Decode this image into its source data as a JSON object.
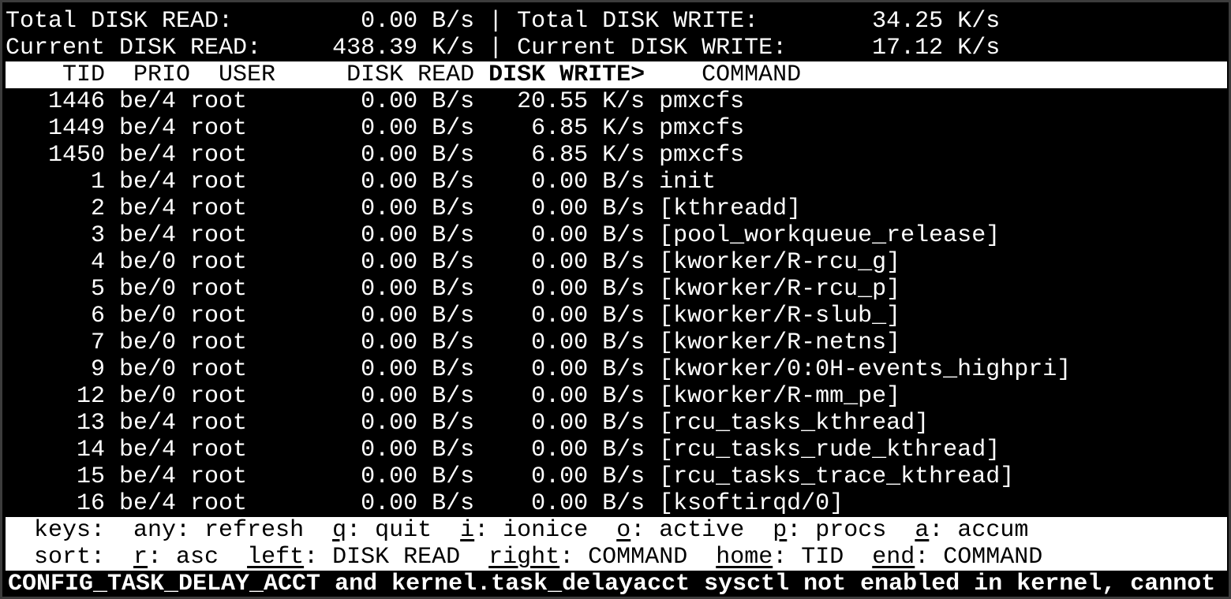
{
  "summary": {
    "total_read_label": "Total DISK READ:",
    "total_read_value": "0.00 B/s",
    "total_write_label": "Total DISK WRITE:",
    "total_write_value": "34.25 K/s",
    "current_read_label": "Current DISK READ:",
    "current_read_value": "438.39 K/s",
    "current_write_label": "Current DISK WRITE:",
    "current_write_value": "17.12 K/s",
    "separator": "|"
  },
  "columns": {
    "tid": "TID",
    "prio": "PRIO",
    "user": "USER",
    "disk_read": "DISK READ",
    "disk_write": "DISK WRITE>",
    "command": "COMMAND"
  },
  "rows": [
    {
      "tid": "1446",
      "prio": "be/4",
      "user": "root",
      "read": "0.00 B/s",
      "write": "20.55 K/s",
      "command": "pmxcfs"
    },
    {
      "tid": "1449",
      "prio": "be/4",
      "user": "root",
      "read": "0.00 B/s",
      "write": "6.85 K/s",
      "command": "pmxcfs"
    },
    {
      "tid": "1450",
      "prio": "be/4",
      "user": "root",
      "read": "0.00 B/s",
      "write": "6.85 K/s",
      "command": "pmxcfs"
    },
    {
      "tid": "1",
      "prio": "be/4",
      "user": "root",
      "read": "0.00 B/s",
      "write": "0.00 B/s",
      "command": "init"
    },
    {
      "tid": "2",
      "prio": "be/4",
      "user": "root",
      "read": "0.00 B/s",
      "write": "0.00 B/s",
      "command": "[kthreadd]"
    },
    {
      "tid": "3",
      "prio": "be/4",
      "user": "root",
      "read": "0.00 B/s",
      "write": "0.00 B/s",
      "command": "[pool_workqueue_release]"
    },
    {
      "tid": "4",
      "prio": "be/0",
      "user": "root",
      "read": "0.00 B/s",
      "write": "0.00 B/s",
      "command": "[kworker/R-rcu_g]"
    },
    {
      "tid": "5",
      "prio": "be/0",
      "user": "root",
      "read": "0.00 B/s",
      "write": "0.00 B/s",
      "command": "[kworker/R-rcu_p]"
    },
    {
      "tid": "6",
      "prio": "be/0",
      "user": "root",
      "read": "0.00 B/s",
      "write": "0.00 B/s",
      "command": "[kworker/R-slub_]"
    },
    {
      "tid": "7",
      "prio": "be/0",
      "user": "root",
      "read": "0.00 B/s",
      "write": "0.00 B/s",
      "command": "[kworker/R-netns]"
    },
    {
      "tid": "9",
      "prio": "be/0",
      "user": "root",
      "read": "0.00 B/s",
      "write": "0.00 B/s",
      "command": "[kworker/0:0H-events_highpri]"
    },
    {
      "tid": "12",
      "prio": "be/0",
      "user": "root",
      "read": "0.00 B/s",
      "write": "0.00 B/s",
      "command": "[kworker/R-mm_pe]"
    },
    {
      "tid": "13",
      "prio": "be/4",
      "user": "root",
      "read": "0.00 B/s",
      "write": "0.00 B/s",
      "command": "[rcu_tasks_kthread]"
    },
    {
      "tid": "14",
      "prio": "be/4",
      "user": "root",
      "read": "0.00 B/s",
      "write": "0.00 B/s",
      "command": "[rcu_tasks_rude_kthread]"
    },
    {
      "tid": "15",
      "prio": "be/4",
      "user": "root",
      "read": "0.00 B/s",
      "write": "0.00 B/s",
      "command": "[rcu_tasks_trace_kthread]"
    },
    {
      "tid": "16",
      "prio": "be/4",
      "user": "root",
      "read": "0.00 B/s",
      "write": "0.00 B/s",
      "command": "[ksoftirqd/0]"
    }
  ],
  "keys": {
    "label": "keys:",
    "items": [
      {
        "key": "",
        "label": "any: refresh"
      },
      {
        "key": "q",
        "label": ": quit"
      },
      {
        "key": "i",
        "label": ": ionice"
      },
      {
        "key": "o",
        "label": ": active"
      },
      {
        "key": "p",
        "label": ": procs"
      },
      {
        "key": "a",
        "label": ": accum"
      }
    ]
  },
  "sort": {
    "label": "sort:",
    "items": [
      {
        "key": "r",
        "label": ": asc"
      },
      {
        "key": "left",
        "label": ": DISK READ"
      },
      {
        "key": "right",
        "label": ": COMMAND"
      },
      {
        "key": "home",
        "label": ": TID"
      },
      {
        "key": "end",
        "label": ": COMMAND"
      }
    ]
  },
  "warning": "CONFIG_TASK_DELAY_ACCT and kernel.task_delayacct sysctl not enabled in kernel, cannot"
}
